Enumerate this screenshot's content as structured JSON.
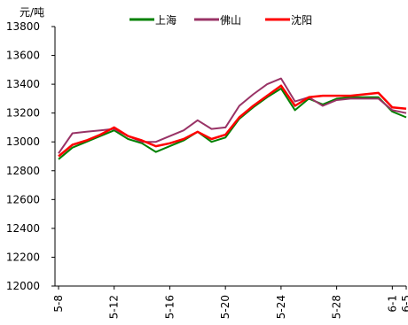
{
  "chart_data": {
    "type": "line",
    "ylabel": "元/吨",
    "ylim": [
      12000,
      13800
    ],
    "yticks": [
      12000,
      12200,
      12400,
      12600,
      12800,
      13000,
      13200,
      13400,
      13600,
      13800
    ],
    "ytick_labels": [
      "12000",
      "12200",
      "12400",
      "12600",
      "12800",
      "13000",
      "13200",
      "13400",
      "13600",
      "13800"
    ],
    "x_tick_labels": [
      "5-8",
      "5-12",
      "5-16",
      "5-20",
      "5-24",
      "5-28",
      "6-1",
      "6-5"
    ],
    "grid": false,
    "legend_placement": "top",
    "series": [
      {
        "name": "上海",
        "color": "#008000",
        "values": [
          12880,
          12960,
          13000,
          13040,
          13080,
          13020,
          12990,
          12930,
          12970,
          13010,
          13070,
          13000,
          13030,
          13160,
          13240,
          13310,
          13370,
          13220,
          13300,
          13260,
          13300,
          13310,
          13310,
          13310,
          13210,
          13170
        ]
      },
      {
        "name": "佛山",
        "color": "#993366",
        "values": [
          12920,
          13060,
          13070,
          13080,
          13090,
          13040,
          13000,
          13000,
          13040,
          13080,
          13150,
          13090,
          13100,
          13250,
          13330,
          13400,
          13440,
          13280,
          13310,
          13250,
          13290,
          13300,
          13300,
          13300,
          13220,
          13200
        ]
      },
      {
        "name": "沈阳",
        "color": "#ff0000",
        "values": [
          12900,
          12980,
          13010,
          13050,
          13100,
          13040,
          13010,
          12970,
          12990,
          13020,
          13070,
          13020,
          13050,
          13170,
          13250,
          13320,
          13390,
          13250,
          13310,
          13320,
          13320,
          13320,
          13330,
          13340,
          13240,
          13230
        ]
      }
    ]
  }
}
